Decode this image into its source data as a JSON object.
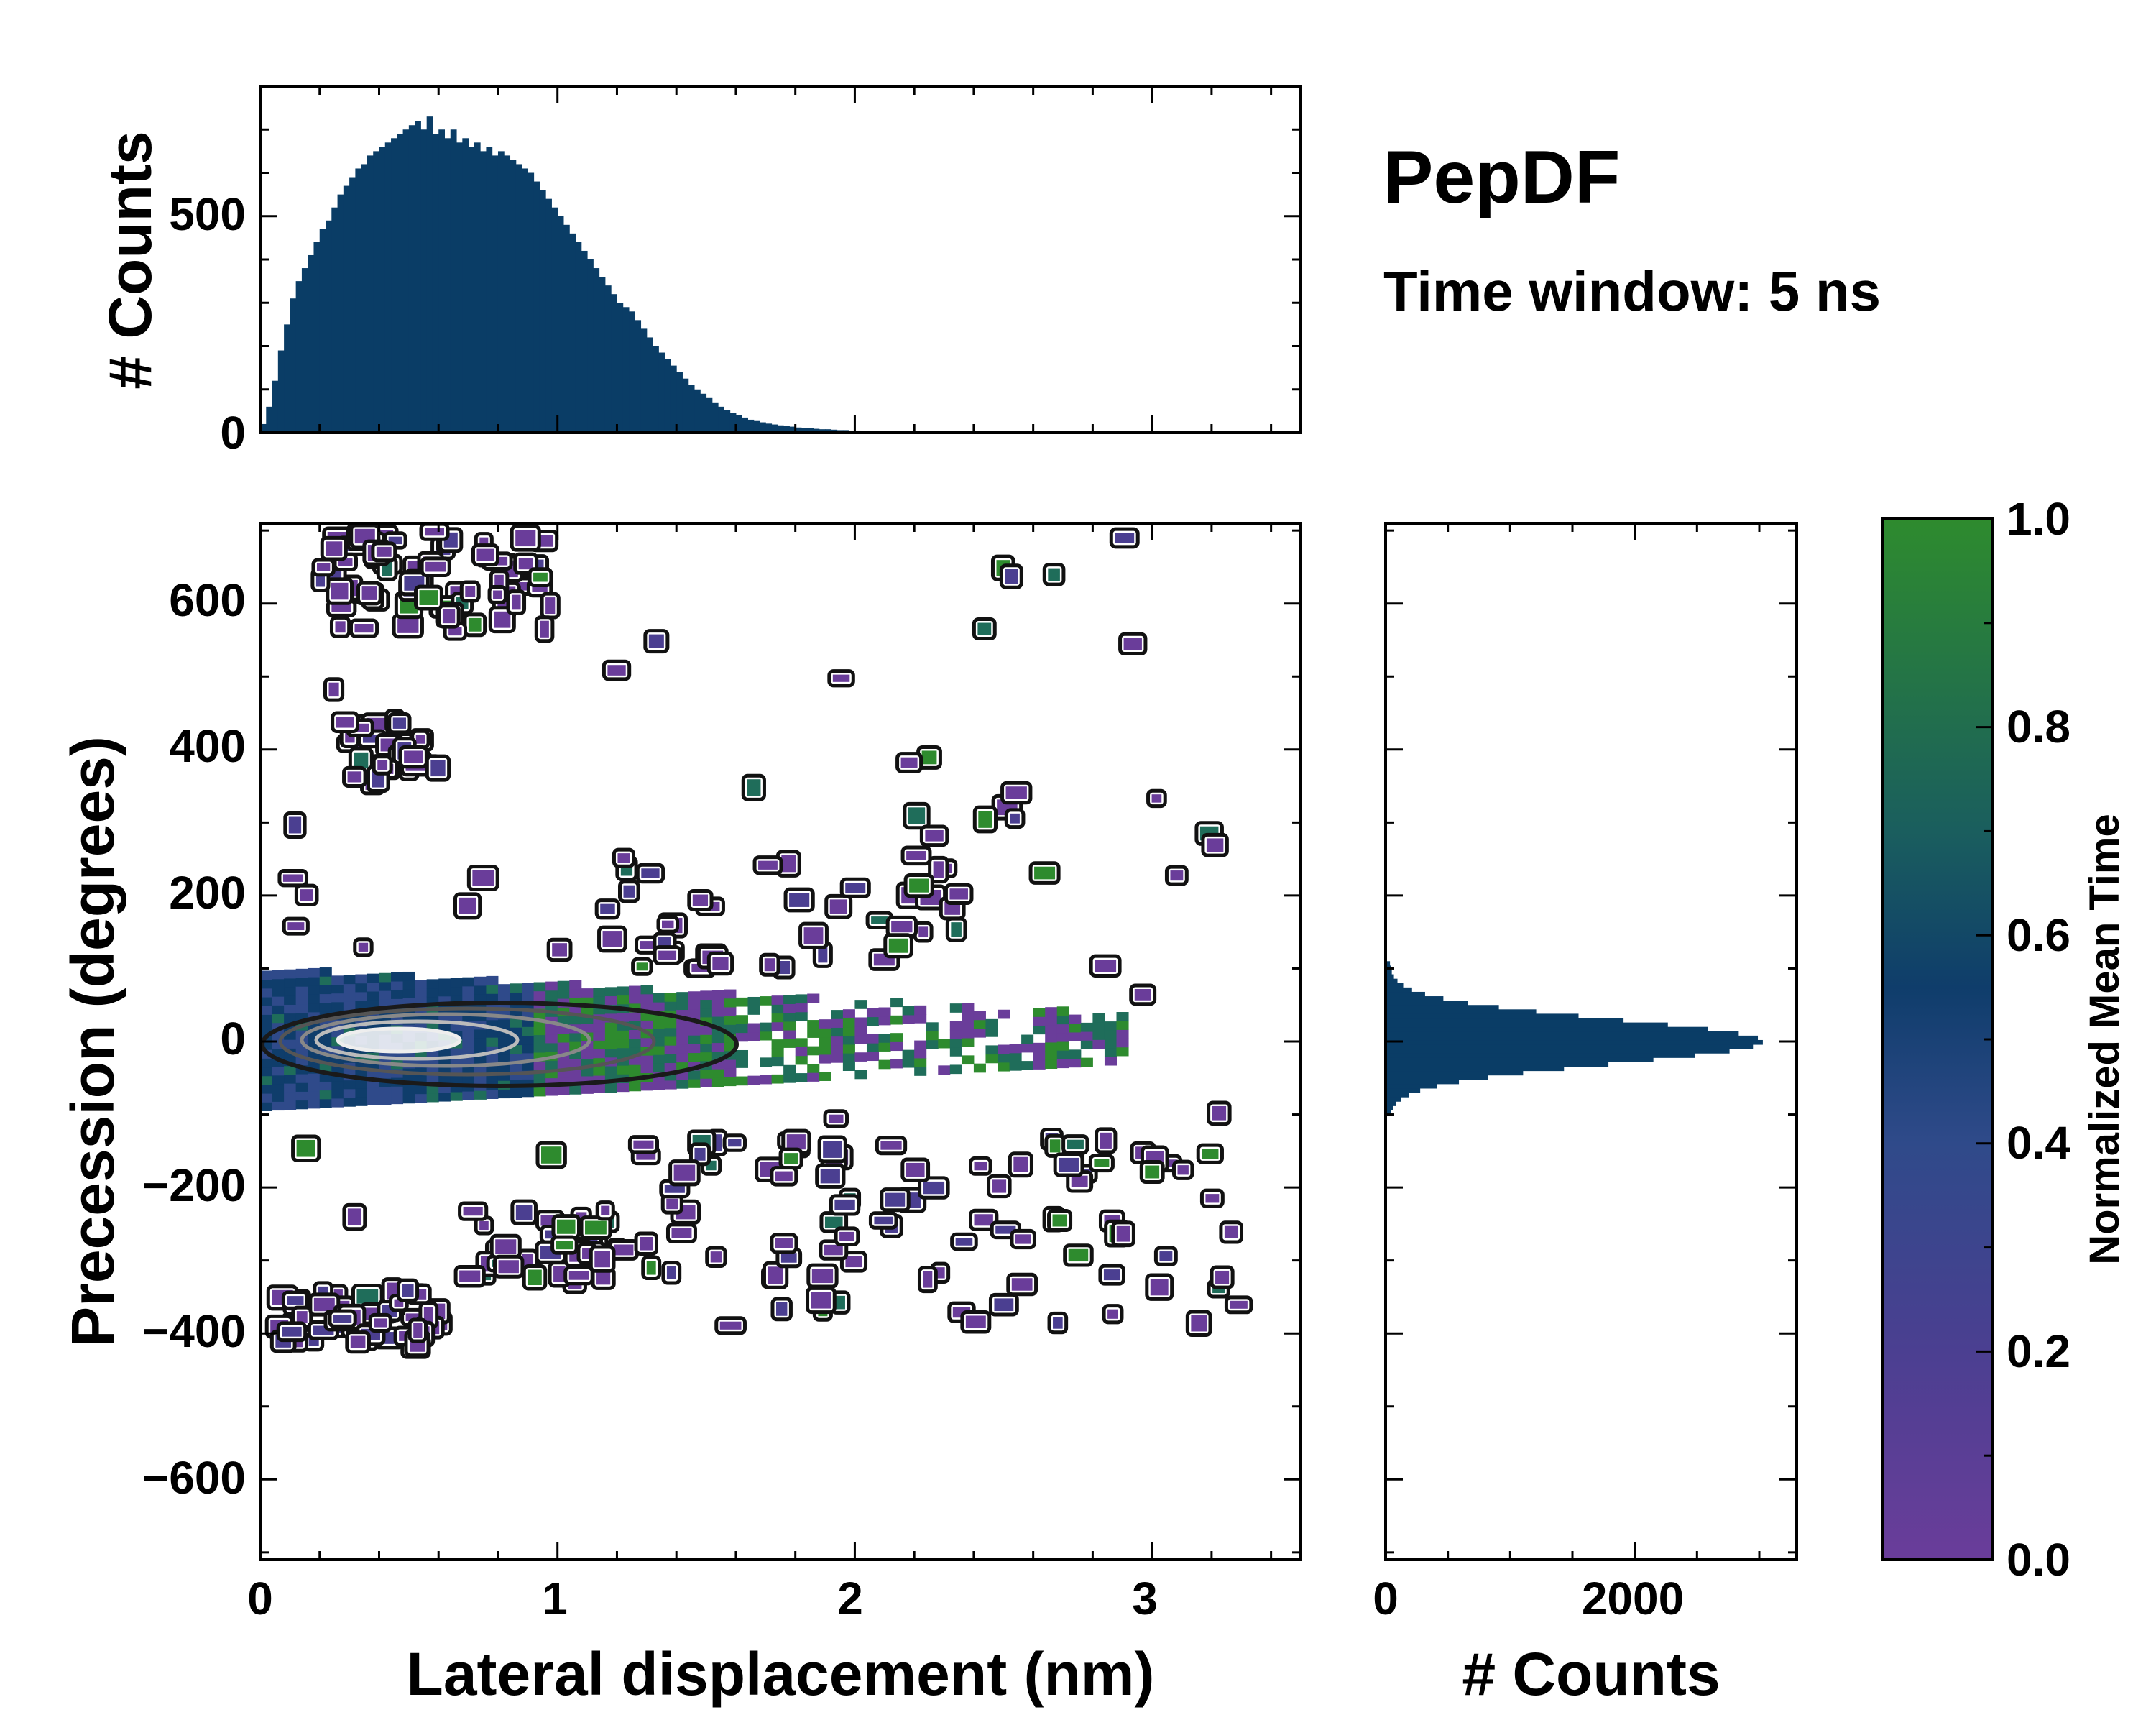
{
  "chart_data": [
    {
      "id": "top-hist",
      "type": "bar",
      "ylabel": "# Counts",
      "xlim": [
        0,
        3.5
      ],
      "ylim": [
        0,
        800
      ],
      "yticks": [
        "0",
        "500"
      ],
      "bin_width": 0.02,
      "counts": [
        20,
        60,
        120,
        190,
        250,
        310,
        350,
        380,
        410,
        440,
        470,
        490,
        520,
        550,
        570,
        590,
        610,
        620,
        640,
        650,
        660,
        670,
        680,
        690,
        700,
        710,
        720,
        700,
        730,
        690,
        700,
        680,
        700,
        670,
        680,
        660,
        670,
        650,
        660,
        640,
        650,
        640,
        630,
        620,
        610,
        600,
        580,
        560,
        540,
        520,
        500,
        480,
        460,
        440,
        420,
        400,
        380,
        360,
        340,
        320,
        300,
        290,
        280,
        260,
        240,
        220,
        200,
        185,
        170,
        155,
        140,
        125,
        110,
        100,
        90,
        80,
        70,
        60,
        52,
        45,
        40,
        35,
        30,
        27,
        24,
        21,
        19,
        17,
        15,
        14,
        12,
        11,
        10,
        9,
        8,
        8,
        7,
        6,
        6,
        5,
        5,
        4,
        4,
        4,
        3,
        3,
        3,
        3,
        2,
        2,
        2,
        2,
        2,
        2,
        1,
        1,
        1,
        1,
        1,
        1,
        1,
        1,
        1,
        1,
        1,
        1,
        1,
        0,
        1,
        0,
        1,
        0,
        1,
        0,
        0,
        1,
        0,
        0,
        0,
        1,
        0,
        0,
        0,
        0,
        0,
        0,
        0,
        0,
        0,
        0,
        0,
        0,
        0,
        0,
        0,
        0,
        0,
        0,
        0,
        0,
        0,
        0,
        0,
        0,
        0,
        0,
        0,
        0,
        0,
        0,
        0,
        0,
        0,
        0,
        0
      ]
    },
    {
      "id": "main-heatmap",
      "type": "heatmap",
      "xlabel": "Lateral displacement (nm)",
      "ylabel": "Precession (degrees)",
      "xlim": [
        0,
        3.5
      ],
      "ylim": [
        -710,
        710
      ],
      "xticks": [
        "0",
        "1",
        "2",
        "3"
      ],
      "yticks": [
        "−600",
        "−400",
        "−200",
        "0",
        "200",
        "400",
        "600"
      ],
      "core": {
        "x_center": 0.55,
        "y_center": 0,
        "x_extent": [
          0,
          3.0
        ],
        "y_extent": [
          -100,
          100
        ]
      },
      "clusters": [
        {
          "x": [
            0.2,
            1.0
          ],
          "y": [
            560,
            700
          ],
          "n": 70
        },
        {
          "x": [
            0.3,
            0.6
          ],
          "y": [
            350,
            440
          ],
          "n": 25
        },
        {
          "x": [
            0.05,
            0.6
          ],
          "y": [
            -420,
            -340
          ],
          "n": 60
        },
        {
          "x": [
            0.7,
            1.3
          ],
          "y": [
            -330,
            -230
          ],
          "n": 40
        },
        {
          "x": [
            1.2,
            3.3
          ],
          "y": [
            -390,
            -130
          ],
          "n": 90
        },
        {
          "x": [
            0.1,
            3.3
          ],
          "y": [
            -260,
            690
          ],
          "n": 60
        },
        {
          "x": [
            1.0,
            2.4
          ],
          "y": [
            90,
            260
          ],
          "n": 45
        }
      ]
    },
    {
      "id": "right-hist",
      "type": "bar",
      "orientation": "horizontal",
      "xlabel": "# Counts",
      "xlim": [
        0,
        3300
      ],
      "xticks": [
        "0",
        "2000"
      ],
      "ylim": [
        -710,
        710
      ],
      "peak_count": 3000,
      "y_center": 0,
      "y_sigma": 30,
      "y_range": [
        -100,
        120
      ]
    },
    {
      "id": "colorbar",
      "type": "colorbar",
      "label": "Normalized Mean Time",
      "range": [
        0.0,
        1.0
      ],
      "ticks": [
        "0.0",
        "0.2",
        "0.4",
        "0.6",
        "0.8",
        "1.0"
      ],
      "colors": [
        "#6a3d9a",
        "#4b3f91",
        "#2f4a8a",
        "#0f3d6b",
        "#1f6d5a",
        "#2e8b2e"
      ]
    }
  ],
  "annotations": {
    "title": "PepDF",
    "subtitle": "Time window: 5 ns"
  }
}
